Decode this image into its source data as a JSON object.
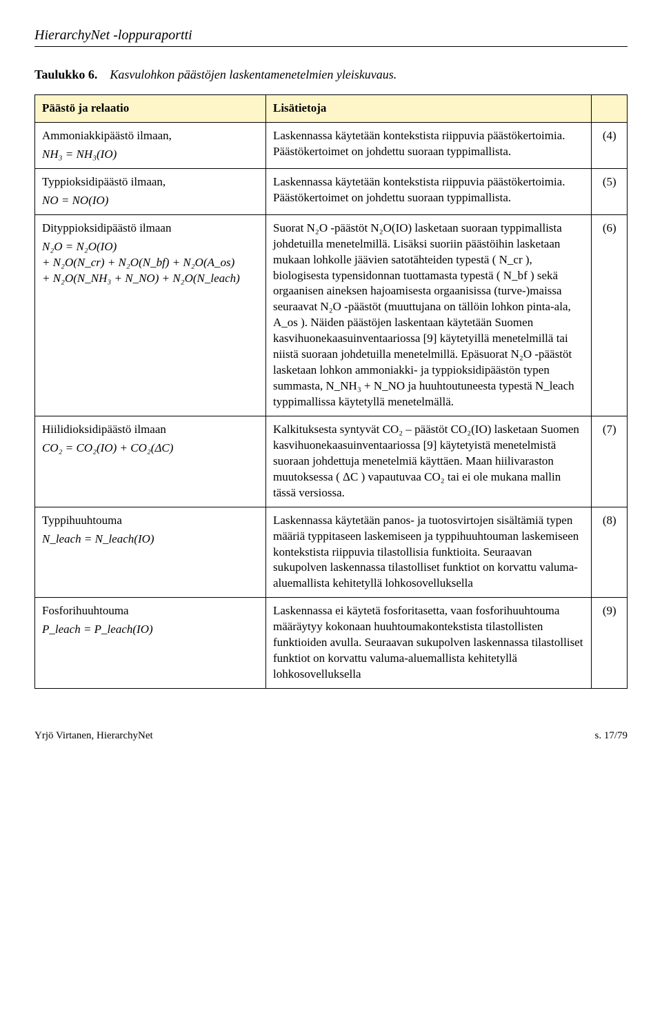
{
  "header": "HierarchyNet -loppuraportti",
  "caption": {
    "label": "Taulukko 6.",
    "text": "Kasvulohkon päästöjen laskentamenetelmien yleiskuvaus."
  },
  "tableHead": {
    "col1": "Päästö ja relaatio",
    "col2": "Lisätietoja"
  },
  "rows": [
    {
      "name": "Ammoniakkipäästö ilmaan,",
      "formula": "NH₃ = NH₃(IO)",
      "info": "Laskennassa käytetään kontekstista riippuvia päästökertoimia. Päästökertoimet on johdettu suoraan typpimallista.",
      "num": "(4)"
    },
    {
      "name": "Typpioksidipäästö ilmaan,",
      "formula": "NO = NO(IO)",
      "info": "Laskennassa käytetään kontekstista riippuvia päästökertoimia. Päästökertoimet on johdettu suoraan typpimallista.",
      "num": "(5)"
    },
    {
      "name": "Dityppioksidipäästö ilmaan",
      "formula": "N₂O = N₂O(IO)\n+ N₂O(N_cr) + N₂O(N_bf) + N₂O(A_os)\n+ N₂O(N_NH₃ + N_NO) + N₂O(N_leach)",
      "info": "Suorat N₂O -päästöt N₂O(IO) lasketaan suoraan typpimallista johdetuilla menetelmillä. Lisäksi suoriin päästöihin lasketaan mukaan lohkolle jäävien satotähteiden typestä ( N_cr ), biologisesta typensidonnan tuottamasta typestä ( N_bf ) sekä orgaanisen aineksen hajoamisesta orgaanisissa (turve-)maissa seuraavat N₂O -päästöt (muuttujana on tällöin lohkon pinta-ala, A_os ). Näiden päästöjen laskentaan käytetään Suomen kasvihuonekaasuinventaariossa [9] käytetyillä menetelmillä tai niistä suoraan johdetuilla menetelmillä. Epäsuorat N₂O -päästöt lasketaan lohkon ammoniakki- ja typpioksidipäästön typen summasta, N_NH₃ + N_NO ja huuhtoutuneesta typestä N_leach typpimallissa käytetyllä menetelmällä.",
      "num": "(6)"
    },
    {
      "name": "Hiilidioksidipäästö ilmaan",
      "formula": "CO₂ = CO₂(IO) + CO₂(ΔC)",
      "info": "Kalkituksesta syntyvät CO₂ – päästöt CO₂(IO) lasketaan Suomen kasvihuonekaasuinventaariossa [9] käytetyistä menetelmistä suoraan johdettuja menetelmiä käyttäen. Maan hiilivaraston muutoksessa ( ΔC ) vapautuvaa CO₂ tai ei ole mukana mallin tässä versiossa.",
      "num": "(7)"
    },
    {
      "name": "Typpihuuhtouma",
      "formula": "N_leach = N_leach(IO)",
      "info": "Laskennassa käytetään panos- ja tuotosvirtojen sisältämiä typen määriä typpitaseen laskemiseen ja typpihuuhtouman laskemiseen kontekstista riippuvia tilastollisia funktioita. Seuraavan sukupolven laskennassa tilastolliset funktiot on korvattu valuma-aluemallista kehitetyllä lohkosovelluksella",
      "num": "(8)"
    },
    {
      "name": "Fosforihuuhtouma",
      "formula": "P_leach = P_leach(IO)",
      "info": "Laskennassa ei käytetä fosforitasetta, vaan fosforihuuhtouma määräytyy kokonaan huuhtoumakontekstista tilastollisten funktioiden avulla. Seuraavan sukupolven laskennassa tilastolliset funktiot on korvattu valuma-aluemallista kehitetyllä lohkosovelluksella",
      "num": "(9)"
    }
  ],
  "footer": {
    "left": "Yrjö Virtanen, HierarchyNet",
    "right": "s. 17/79"
  },
  "colors": {
    "headerBg": "#fef6c8",
    "border": "#000000",
    "text": "#000000",
    "background": "#ffffff"
  }
}
